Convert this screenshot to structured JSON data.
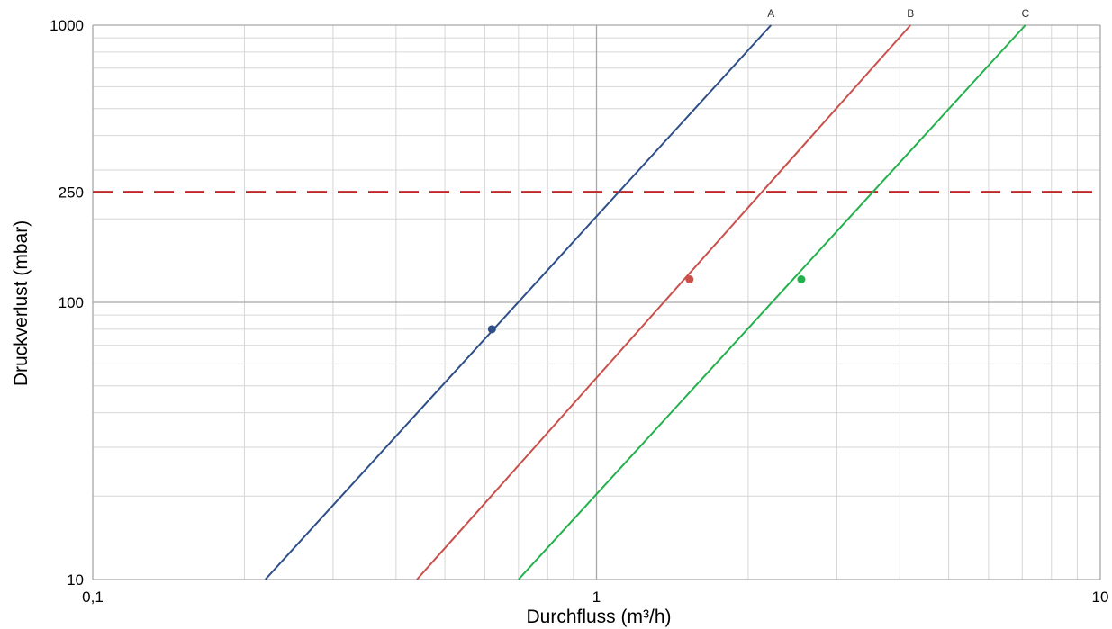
{
  "chart_data": {
    "type": "line",
    "title": "",
    "xlabel": "Durchfluss (m³/h)",
    "ylabel": "Druckverlust (mbar)",
    "x_scale": "log",
    "y_scale": "log",
    "xlim": [
      0.1,
      10
    ],
    "ylim": [
      10,
      1000
    ],
    "grid": true,
    "x_ticks": [
      {
        "value": 0.1,
        "label": "0,1"
      },
      {
        "value": 1,
        "label": "1"
      },
      {
        "value": 10,
        "label": "10"
      }
    ],
    "y_ticks": [
      {
        "value": 10,
        "label": "10"
      },
      {
        "value": 100,
        "label": "100"
      },
      {
        "value": 250,
        "label": "250"
      },
      {
        "value": 1000,
        "label": "1000"
      }
    ],
    "reference_line": {
      "axis": "y",
      "value": 250,
      "style": "dashed",
      "color": "#c0282d"
    },
    "series": [
      {
        "name": "A",
        "color": "#2d4e86",
        "x": [
          0.22,
          2.22
        ],
        "y": [
          10,
          1000
        ],
        "marker": {
          "x": 0.62,
          "y": 80
        }
      },
      {
        "name": "B",
        "color": "#c9504b",
        "x": [
          0.44,
          4.2
        ],
        "y": [
          10,
          1000
        ],
        "marker": {
          "x": 1.53,
          "y": 121
        }
      },
      {
        "name": "C",
        "color": "#22b14c",
        "x": [
          0.7,
          7.1
        ],
        "y": [
          10,
          1000
        ],
        "marker": {
          "x": 2.55,
          "y": 121
        }
      }
    ]
  }
}
